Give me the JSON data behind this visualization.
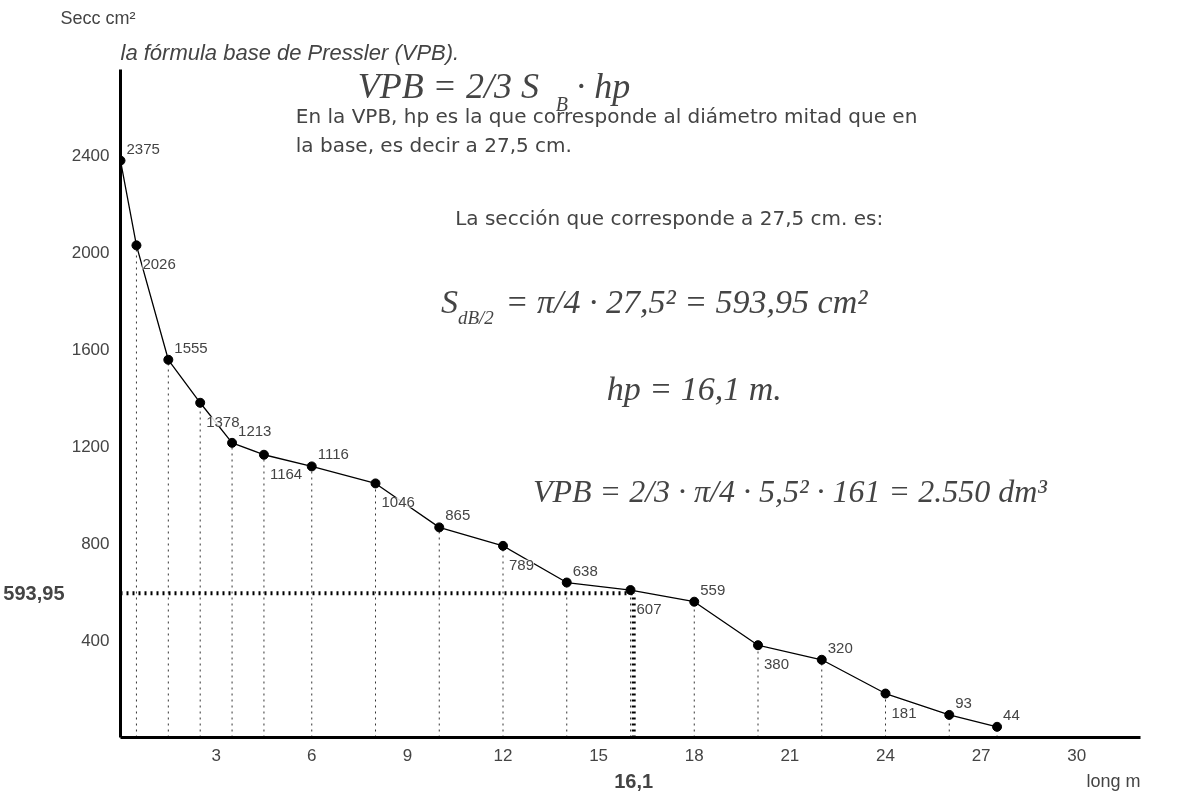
{
  "chart_data": {
    "type": "line",
    "title": "la fórmula base de Pressler (VPB).",
    "xlabel": "long m",
    "ylabel": "Secc\ncm²",
    "x": [
      0,
      0.5,
      1.5,
      2.5,
      3.5,
      4.5,
      6,
      8,
      10,
      12,
      14,
      16,
      18,
      20,
      22,
      24,
      26,
      27.5
    ],
    "series": [
      {
        "color": "#000000",
        "values": [
          2375,
          2026,
          1555,
          1378,
          1213,
          1164,
          1116,
          1046,
          865,
          789,
          638,
          607,
          559,
          380,
          320,
          181,
          93,
          44
        ]
      }
    ],
    "xlim": [
      0,
      32
    ],
    "ylim": [
      0,
      2750
    ],
    "xticks": [
      3,
      6,
      9,
      12,
      15,
      18,
      21,
      24,
      27,
      30
    ],
    "yticks": [
      400,
      800,
      1200,
      1600,
      2000,
      2400
    ],
    "grid": false,
    "marker": "circle",
    "line_style": "solid",
    "data_labels": true,
    "ref_lines": [
      {
        "axis": "y",
        "value": 593.95,
        "label": "593,95",
        "line_style": "dotted",
        "color": "#000000"
      },
      {
        "axis": "x",
        "value": 16.1,
        "label": "16,1",
        "line_style": "dotted",
        "color": "#000000"
      }
    ],
    "annotations": [
      "VPB = 2/3 S$_{B}$ · hp",
      "En la VPB, hp es la que corresponde al diámetro mitad que en\nla base, es decir a 27,5 cm.",
      "La sección que corresponde a 27,5 cm. es:",
      "S$_{dB/2}$ = π/4 · 27,5² = 593,95 cm²",
      "hp = 16,1 m.",
      "VPB = 2/3 · π/4 · 5,5² · 161 = 2.550 dm³"
    ]
  }
}
